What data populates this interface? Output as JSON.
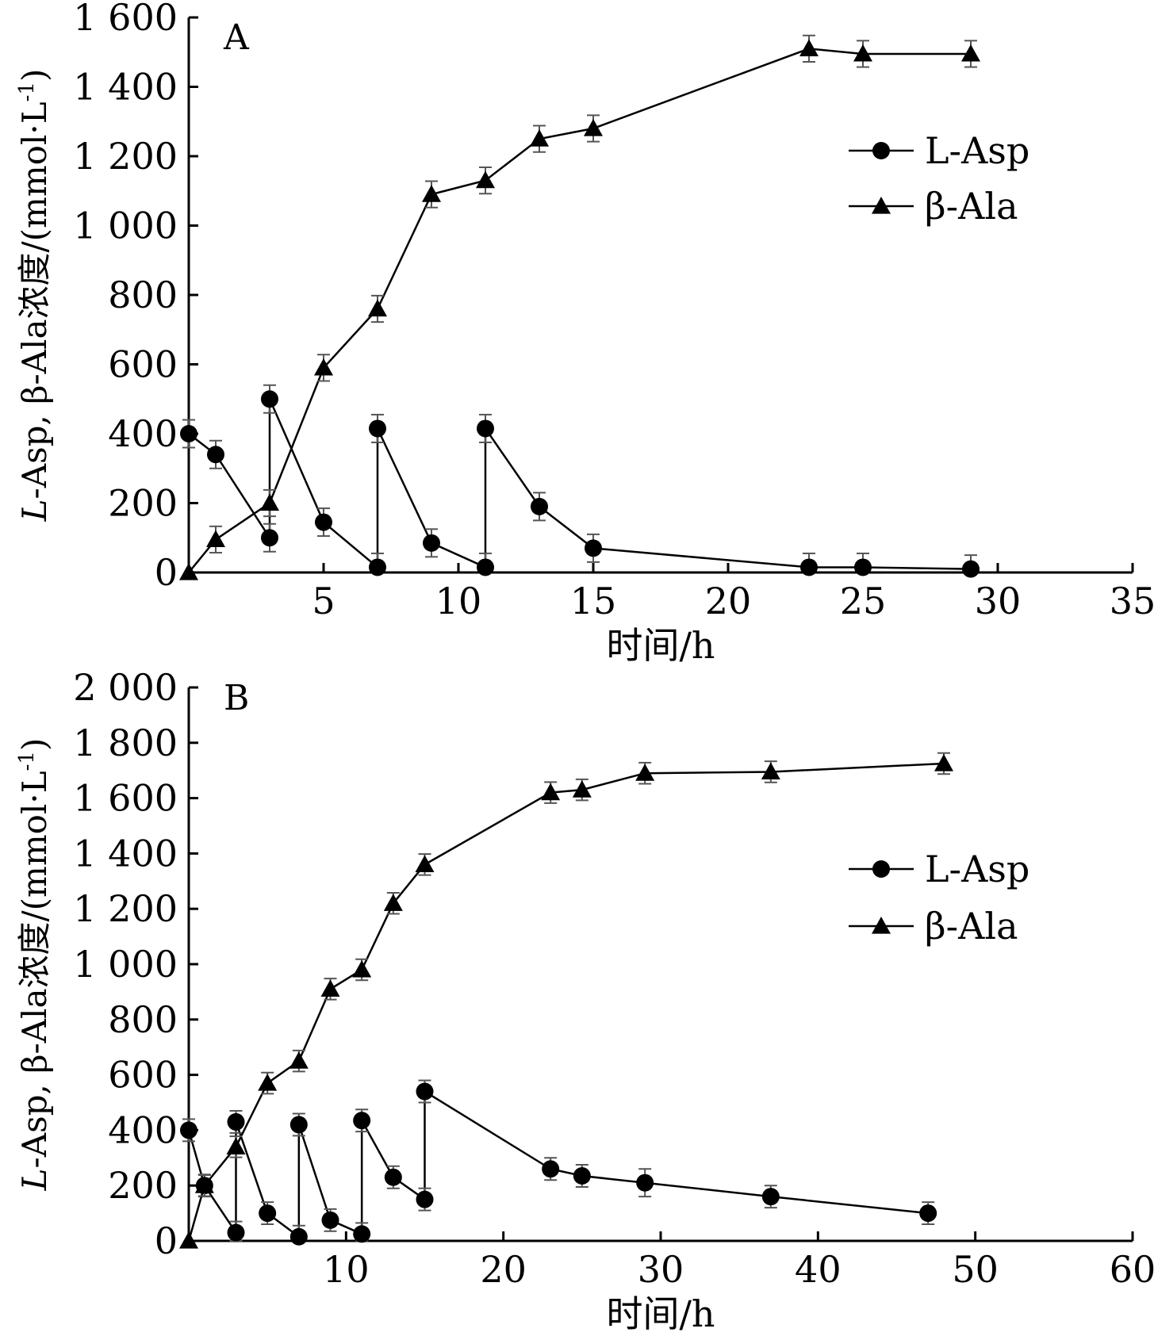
{
  "chart_data": [
    {
      "type": "line",
      "panel_label": "A",
      "xlabel": "时间/h",
      "ylabel_italic": "L",
      "ylabel": "-Asp, β-Ala浓度/(mmol·L",
      "ylabel_sup": "-1",
      "ylabel_end": ")",
      "xlim": [
        0,
        35
      ],
      "ylim": [
        0,
        1600
      ],
      "xticks": [
        5,
        10,
        15,
        20,
        25,
        30,
        35
      ],
      "xtick_labels": [
        "5",
        "10",
        "15",
        "20",
        "25",
        "30",
        "35"
      ],
      "yticks": [
        0,
        200,
        400,
        600,
        800,
        1000,
        1200,
        1400,
        1600
      ],
      "ytick_labels": [
        "0",
        "200",
        "400",
        "600",
        "800",
        "1 000",
        "1 200",
        "1 400",
        "1 600"
      ],
      "legend_position": "upper-right",
      "grid": false,
      "series": [
        {
          "name": "L-Asp",
          "marker": "circle",
          "x": [
            0,
            1,
            3,
            3,
            5,
            7,
            7,
            9,
            11,
            11,
            13,
            15,
            23,
            25,
            29
          ],
          "y": [
            400,
            340,
            100,
            500,
            145,
            15,
            415,
            85,
            15,
            415,
            190,
            70,
            15,
            15,
            10
          ],
          "error": [
            40,
            40,
            40,
            40,
            40,
            40,
            40,
            40,
            40,
            40,
            40,
            40,
            40,
            40,
            40
          ]
        },
        {
          "name": "β-Ala",
          "marker": "triangle",
          "x": [
            0,
            1,
            3,
            5,
            7,
            9,
            11,
            13,
            15,
            23,
            25,
            29
          ],
          "y": [
            0,
            95,
            200,
            590,
            760,
            1090,
            1130,
            1250,
            1280,
            1510,
            1495,
            1495
          ],
          "error": [
            0,
            38,
            38,
            38,
            38,
            38,
            38,
            38,
            38,
            38,
            38,
            38
          ]
        }
      ]
    },
    {
      "type": "line",
      "panel_label": "B",
      "xlabel": "时间/h",
      "ylabel_italic": "L",
      "ylabel": "-Asp, β-Ala浓度/(mmol·L",
      "ylabel_sup": "-1",
      "ylabel_end": ")",
      "xlim": [
        0,
        60
      ],
      "ylim": [
        0,
        2000
      ],
      "xticks": [
        10,
        20,
        30,
        40,
        50,
        60
      ],
      "xtick_labels": [
        "10",
        "20",
        "30",
        "40",
        "50",
        "60"
      ],
      "yticks": [
        0,
        200,
        400,
        600,
        800,
        1000,
        1200,
        1400,
        1600,
        1800,
        2000
      ],
      "ytick_labels": [
        "0",
        "200",
        "400",
        "600",
        "800",
        "1 000",
        "1 200",
        "1 400",
        "1 600",
        "1 800",
        "2 000"
      ],
      "legend_position": "right",
      "grid": false,
      "series": [
        {
          "name": "L-Asp",
          "marker": "circle",
          "x": [
            0,
            1,
            3,
            3,
            5,
            7,
            7,
            9,
            11,
            11,
            13,
            15,
            15,
            23,
            25,
            29,
            37,
            47
          ],
          "y": [
            400,
            200,
            30,
            430,
            100,
            15,
            420,
            75,
            25,
            435,
            230,
            150,
            540,
            260,
            235,
            210,
            160,
            100
          ],
          "error": [
            40,
            40,
            40,
            40,
            40,
            40,
            40,
            40,
            40,
            40,
            40,
            40,
            40,
            40,
            40,
            50,
            40,
            40
          ]
        },
        {
          "name": "β-Ala",
          "marker": "triangle",
          "x": [
            0,
            1,
            3,
            5,
            7,
            9,
            11,
            13,
            15,
            23,
            25,
            29,
            37,
            48
          ],
          "y": [
            0,
            200,
            340,
            570,
            650,
            910,
            980,
            1220,
            1360,
            1620,
            1630,
            1690,
            1695,
            1725
          ],
          "error": [
            0,
            38,
            38,
            38,
            38,
            38,
            38,
            38,
            38,
            38,
            38,
            38,
            38,
            38
          ]
        }
      ]
    }
  ]
}
